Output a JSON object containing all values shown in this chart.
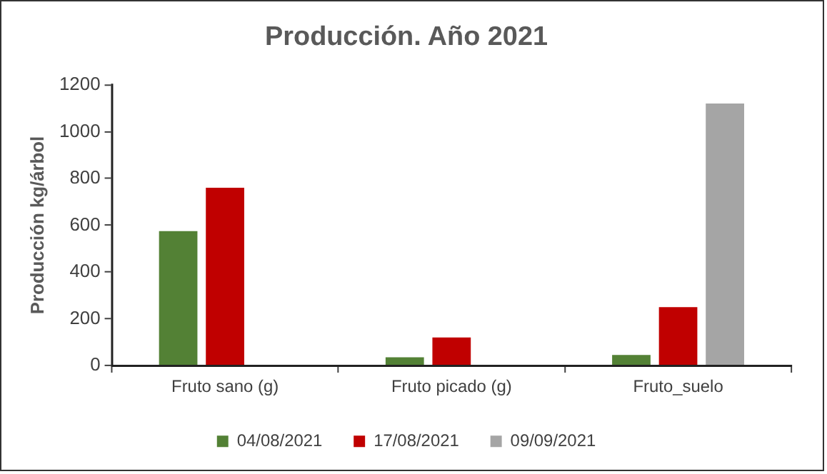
{
  "chart_data": {
    "type": "bar",
    "title": "Producción. Año 2021",
    "ylabel": "Producción kg/árbol",
    "categories": [
      "Fruto sano (g)",
      "Fruto picado (g)",
      "Fruto_suelo"
    ],
    "series": [
      {
        "name": "04/08/2021",
        "color": "#538135",
        "values": [
          575,
          35,
          45
        ]
      },
      {
        "name": "17/08/2021",
        "color": "#c00000",
        "values": [
          760,
          120,
          250
        ]
      },
      {
        "name": "09/09/2021",
        "color": "#a5a5a5",
        "values": [
          null,
          null,
          1120
        ]
      }
    ],
    "ylim": [
      0,
      1200
    ],
    "yticks": [
      0,
      200,
      400,
      600,
      800,
      1000,
      1200
    ],
    "grid": false,
    "legend": "bottom"
  }
}
